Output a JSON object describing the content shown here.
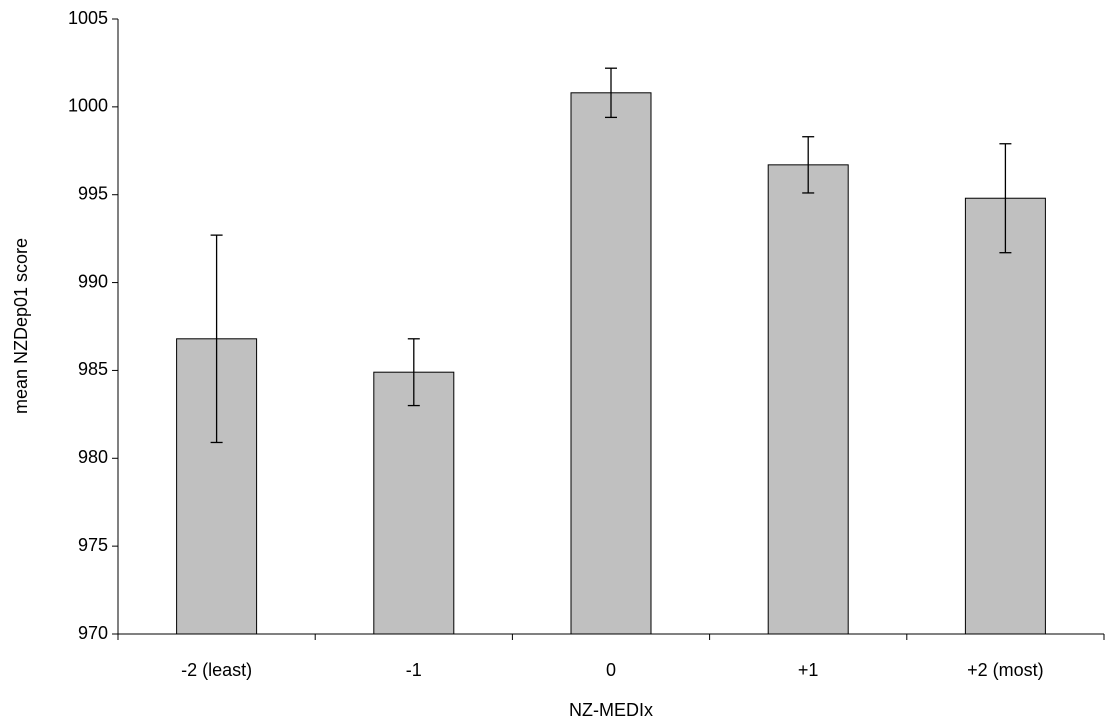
{
  "chart_data": {
    "type": "bar",
    "x_label": "NZ-MEDIx",
    "y_label": "mean NZDep01 score",
    "categories": [
      "-2 (least)",
      "-1",
      "0",
      "+1",
      "+2 (most)"
    ],
    "values": [
      986.8,
      984.9,
      1000.8,
      996.7,
      994.8
    ],
    "errors": [
      5.9,
      1.9,
      1.4,
      1.6,
      3.1
    ],
    "color": "#c0c0c0",
    "ylim": [
      970,
      1005
    ],
    "yticks": [
      970,
      975,
      980,
      985,
      990,
      995,
      1000,
      1005
    ],
    "grid": false
  }
}
